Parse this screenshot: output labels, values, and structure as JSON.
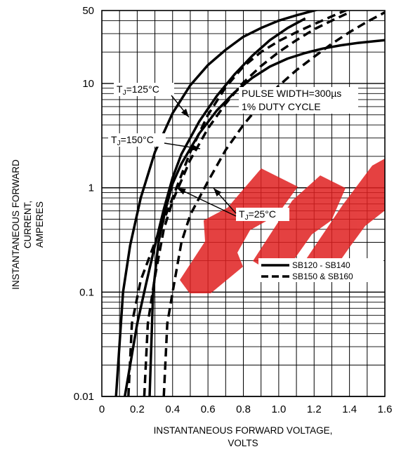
{
  "chart_data": {
    "type": "line",
    "xlabel_lines": [
      "INSTANTANEOUS FORWARD VOLTAGE,",
      "VOLTS"
    ],
    "ylabel_lines": [
      "INSTANTANEOUS FORWARD CURRENT,",
      "AMPERES"
    ],
    "xlim": [
      0,
      1.6
    ],
    "ylim": [
      0.01,
      50
    ],
    "y_scale": "log",
    "grid": true,
    "x_ticks": [
      "0",
      "0.2",
      "0.4",
      "0.6",
      "0.8",
      "1.0",
      "1.2",
      "1.4",
      "1.6"
    ],
    "y_ticks": [
      "0.01",
      "0.1",
      "1",
      "10",
      "50"
    ],
    "legend_position": "right",
    "series": [
      {
        "name": "SB120 - SB140",
        "group": "SB120-SB140",
        "condition": "TJ=125°C",
        "dash": false,
        "x": [
          0.08,
          0.12,
          0.16,
          0.22,
          0.3,
          0.4,
          0.5,
          0.6,
          0.7,
          0.8,
          0.9,
          1.0,
          1.1,
          1.2,
          1.3,
          1.36
        ],
        "y": [
          0.01,
          0.1,
          0.28,
          0.8,
          2.2,
          5.2,
          9.6,
          15,
          21,
          28,
          34,
          40,
          45,
          50,
          55,
          58
        ]
      },
      {
        "name": "SB120 - SB140",
        "group": "SB120-SB140",
        "condition": "TJ=150°C",
        "dash": false,
        "x": [
          0.13,
          0.2,
          0.25,
          0.3,
          0.35,
          0.4,
          0.45,
          0.55,
          0.65,
          0.75,
          0.85,
          0.95,
          1.05,
          1.15
        ],
        "y": [
          0.01,
          0.05,
          0.12,
          0.28,
          0.62,
          1.25,
          2.1,
          4.3,
          7.6,
          12.2,
          18.4,
          26,
          34,
          42
        ]
      },
      {
        "name": "SB120 - SB140",
        "group": "SB120-SB140",
        "condition": "TJ=25°C",
        "dash": false,
        "x": [
          0.27,
          0.29,
          0.32,
          0.36,
          0.4,
          0.45,
          0.55,
          0.65,
          0.75,
          0.85,
          0.95,
          1.05,
          1.15,
          1.25,
          1.35,
          1.45,
          1.55,
          1.6
        ],
        "y": [
          0.01,
          0.1,
          0.3,
          0.62,
          1.1,
          1.7,
          3.3,
          5.5,
          8.2,
          11.3,
          14.5,
          17.3,
          19.6,
          21.6,
          23.2,
          24.5,
          25.5,
          26
        ]
      },
      {
        "name": "SB150 & SB160",
        "group": "SB150-SB160",
        "condition": "TJ=125°C",
        "dash": true,
        "x": [
          0.15,
          0.17,
          0.22,
          0.3,
          0.4,
          0.5,
          0.6,
          0.7,
          0.8,
          0.9,
          1.0,
          1.1,
          1.2,
          1.3,
          1.4
        ],
        "y": [
          0.01,
          0.05,
          0.13,
          0.3,
          0.8,
          2.2,
          5.0,
          9.2,
          14.5,
          20,
          25.5,
          31,
          37,
          44,
          52
        ]
      },
      {
        "name": "SB150 & SB160",
        "group": "SB150-SB160",
        "condition": "TJ=150°C",
        "dash": true,
        "x": [
          0.24,
          0.26,
          0.3,
          0.35,
          0.4,
          0.5,
          0.6,
          0.7,
          0.8,
          0.9,
          1.0,
          1.1,
          1.2,
          1.3,
          1.4
        ],
        "y": [
          0.01,
          0.05,
          0.14,
          0.4,
          0.75,
          1.85,
          3.7,
          6.4,
          10.2,
          14.7,
          20,
          26,
          33,
          40,
          48
        ]
      },
      {
        "name": "SB150 & SB160",
        "group": "SB150-SB160",
        "condition": "TJ=25°C",
        "dash": true,
        "x": [
          0.35,
          0.37,
          0.4,
          0.45,
          0.5,
          0.6,
          0.7,
          0.8,
          0.9,
          1.0,
          1.1,
          1.2,
          1.3,
          1.4,
          1.5,
          1.6
        ],
        "y": [
          0.01,
          0.05,
          0.1,
          0.3,
          0.55,
          1.15,
          2.3,
          4.0,
          6.4,
          9.5,
          13.4,
          18,
          24,
          31,
          39,
          48
        ]
      }
    ],
    "annotations": {
      "t125": "TJ=125°C",
      "t150": "TJ=150°C",
      "t25": "TJ=25°C",
      "pulse_line1": "PULSE WIDTH=300µs",
      "pulse_line2": "1% DUTY CYCLE"
    },
    "legend": [
      {
        "label": "SB120 - SB140",
        "dash": false
      },
      {
        "label": "SB150 & SB160",
        "dash": true
      }
    ],
    "watermark": "ERP"
  },
  "colors": {
    "line": "#000000",
    "grid": "#000000",
    "watermark": "#e02020"
  }
}
